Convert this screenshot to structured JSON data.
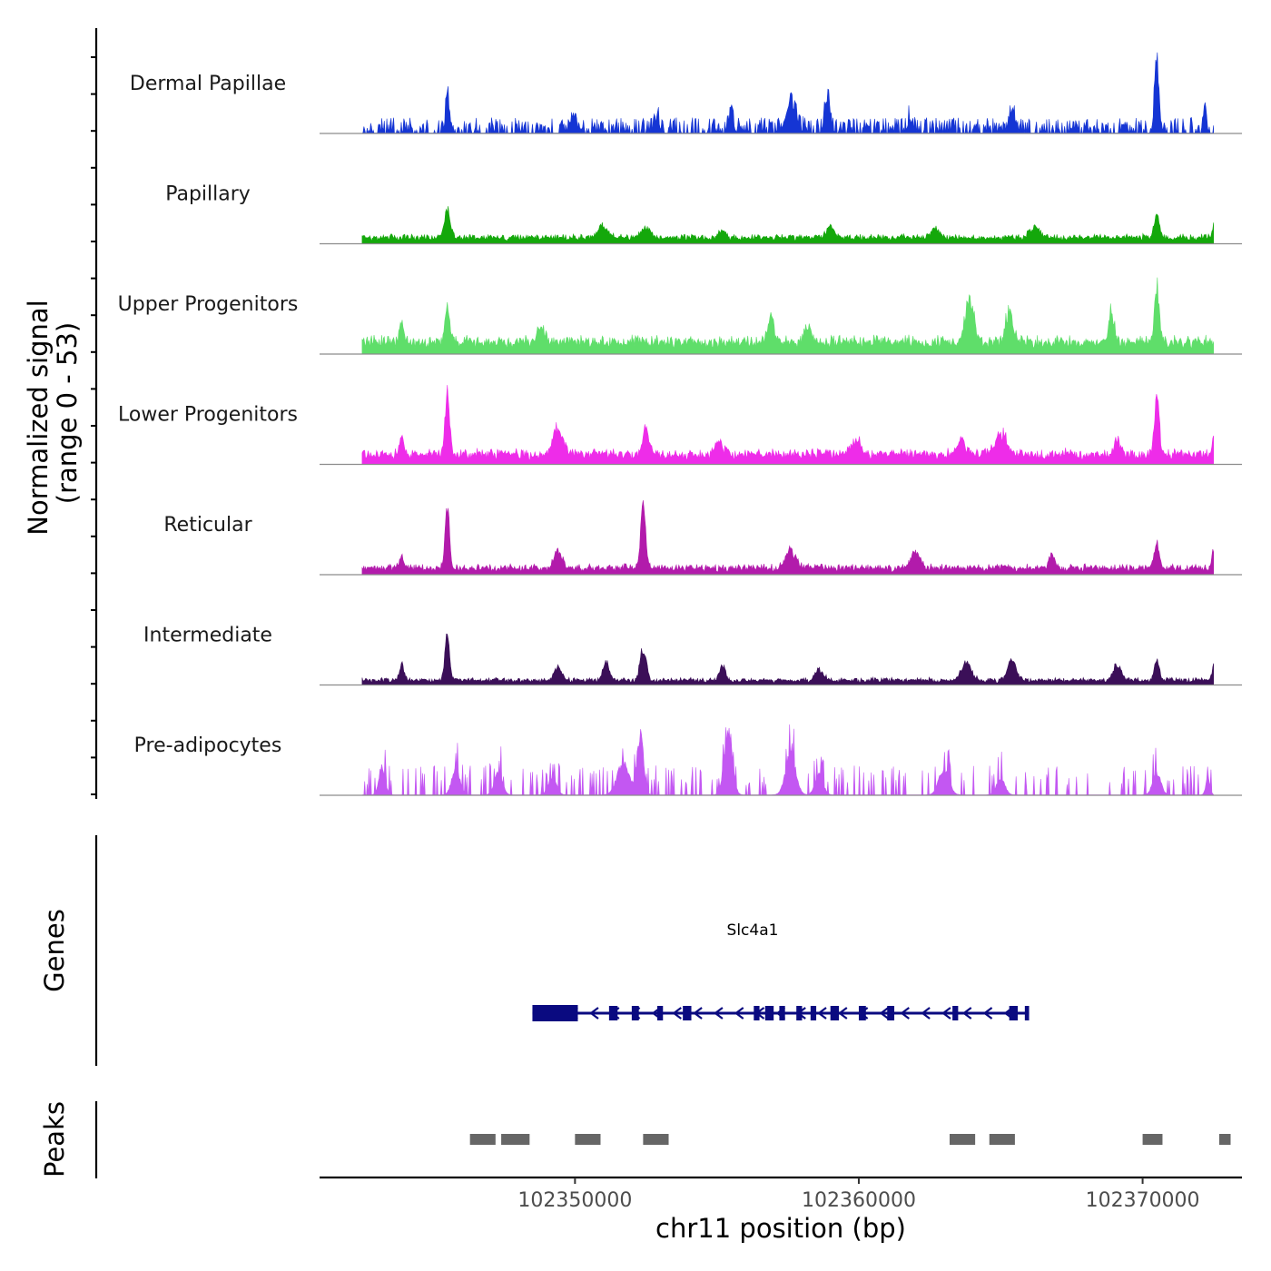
{
  "chart_data": {
    "type": "area",
    "title": "",
    "chromosome": "chr11",
    "xlabel": "chr11 position (bp)",
    "ylabel_line1": "Normalized signal",
    "ylabel_line2": "(range 0 - 53)",
    "xlim": [
      102341000,
      102373500
    ],
    "ylim": [
      0,
      53
    ],
    "x_ticks": [
      102350000,
      102360000,
      102370000
    ],
    "x_tick_labels": [
      "102350000",
      "102360000",
      "102370000"
    ],
    "genes_label": "Genes",
    "peaks_label": "Peaks",
    "signal_start": 102342500,
    "signal_end": 102372500,
    "series": [
      {
        "name": "Dermal Papillae",
        "color": "#1535d4",
        "baseline": 5,
        "noise": 6,
        "peaks": [
          [
            102345500,
            27,
            80
          ],
          [
            102349900,
            11,
            110
          ],
          [
            102352900,
            8,
            120
          ],
          [
            102357600,
            18,
            250
          ],
          [
            102358900,
            25,
            130
          ],
          [
            102361800,
            9,
            110
          ],
          [
            102365400,
            14,
            140
          ],
          [
            102370500,
            50,
            110
          ],
          [
            102372200,
            20,
            70
          ],
          [
            102355500,
            10,
            120
          ]
        ]
      },
      {
        "name": "Papillary",
        "color": "#14a80b",
        "baseline": 3,
        "noise": 3,
        "peaks": [
          [
            102345500,
            19,
            150
          ],
          [
            102351000,
            9,
            220
          ],
          [
            102352500,
            7,
            200
          ],
          [
            102355200,
            7,
            140
          ],
          [
            102359000,
            8,
            200
          ],
          [
            102362700,
            7,
            200
          ],
          [
            102366200,
            7,
            250
          ],
          [
            102370500,
            16,
            130
          ],
          [
            102372500,
            8,
            60
          ]
        ]
      },
      {
        "name": "Upper Progenitors",
        "color": "#5fde6a",
        "baseline": 6,
        "noise": 6,
        "peaks": [
          [
            102343900,
            14,
            110
          ],
          [
            102345500,
            25,
            110
          ],
          [
            102348800,
            10,
            200
          ],
          [
            102356900,
            17,
            150
          ],
          [
            102358200,
            12,
            160
          ],
          [
            102363900,
            30,
            220
          ],
          [
            102365300,
            22,
            180
          ],
          [
            102368900,
            20,
            150
          ],
          [
            102370500,
            42,
            110
          ]
        ]
      },
      {
        "name": "Lower Progenitors",
        "color": "#ee2ce9",
        "baseline": 5,
        "noise": 5,
        "peaks": [
          [
            102343900,
            11,
            110
          ],
          [
            102345500,
            46,
            110
          ],
          [
            102349400,
            17,
            260
          ],
          [
            102352500,
            21,
            140
          ],
          [
            102355100,
            10,
            150
          ],
          [
            102359900,
            10,
            250
          ],
          [
            102363600,
            10,
            200
          ],
          [
            102365000,
            15,
            300
          ],
          [
            102369100,
            11,
            150
          ],
          [
            102370500,
            41,
            120
          ],
          [
            102372500,
            12,
            80
          ]
        ]
      },
      {
        "name": "Reticular",
        "color": "#b21bab",
        "baseline": 3,
        "noise": 4,
        "peaks": [
          [
            102343900,
            10,
            110
          ],
          [
            102345500,
            40,
            110
          ],
          [
            102349400,
            13,
            200
          ],
          [
            102352400,
            52,
            110
          ],
          [
            102357600,
            12,
            250
          ],
          [
            102362000,
            13,
            200
          ],
          [
            102366800,
            9,
            150
          ],
          [
            102370500,
            17,
            130
          ],
          [
            102372500,
            12,
            80
          ]
        ]
      },
      {
        "name": "Intermediate",
        "color": "#3b0f58",
        "baseline": 2,
        "noise": 3,
        "peaks": [
          [
            102343900,
            12,
            110
          ],
          [
            102345500,
            33,
            110
          ],
          [
            102349400,
            9,
            180
          ],
          [
            102351100,
            13,
            160
          ],
          [
            102352400,
            22,
            150
          ],
          [
            102355200,
            10,
            150
          ],
          [
            102358600,
            8,
            200
          ],
          [
            102363800,
            12,
            250
          ],
          [
            102365400,
            15,
            200
          ],
          [
            102369100,
            11,
            200
          ],
          [
            102370500,
            15,
            120
          ],
          [
            102372500,
            11,
            80
          ]
        ]
      },
      {
        "name": "Pre-adipocytes",
        "color": "#c357f2",
        "baseline": 0,
        "noise": 12,
        "peaks": [
          [
            102343200,
            20,
            150
          ],
          [
            102345800,
            18,
            200
          ],
          [
            102347300,
            15,
            200
          ],
          [
            102349200,
            12,
            200
          ],
          [
            102351700,
            22,
            300
          ],
          [
            102352300,
            42,
            160
          ],
          [
            102355400,
            46,
            200
          ],
          [
            102357600,
            28,
            250
          ],
          [
            102358600,
            14,
            200
          ],
          [
            102363000,
            18,
            250
          ],
          [
            102365000,
            12,
            200
          ],
          [
            102370500,
            15,
            200
          ],
          [
            102372300,
            12,
            100
          ]
        ]
      }
    ],
    "gene": {
      "name": "Slc4a1",
      "start": 102348500,
      "end": 102366000,
      "strand": "-",
      "exons": [
        [
          102348500,
          102350100
        ],
        [
          102351200,
          102351500
        ],
        [
          102352000,
          102352250
        ],
        [
          102352900,
          102353100
        ],
        [
          102353800,
          102354100
        ],
        [
          102356300,
          102356500
        ],
        [
          102356700,
          102357000
        ],
        [
          102357200,
          102357400
        ],
        [
          102357800,
          102358000
        ],
        [
          102358300,
          102358500
        ],
        [
          102359000,
          102359300
        ],
        [
          102360000,
          102360250
        ],
        [
          102361000,
          102361250
        ],
        [
          102363300,
          102363500
        ],
        [
          102365300,
          102365600
        ],
        [
          102365850,
          102366000
        ]
      ]
    },
    "peaks": [
      [
        102346300,
        102347200
      ],
      [
        102347400,
        102348400
      ],
      [
        102350000,
        102350900
      ],
      [
        102352400,
        102353300
      ],
      [
        102363200,
        102364100
      ],
      [
        102364600,
        102365500
      ],
      [
        102370000,
        102370700
      ],
      [
        102372700,
        102373100
      ]
    ]
  }
}
